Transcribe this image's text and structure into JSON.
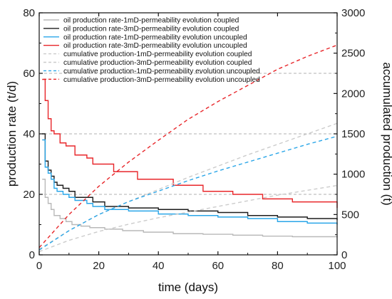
{
  "chart_data": {
    "type": "line",
    "title": "",
    "xlabel": "time (days)",
    "ylabel_left": "production rate (t/d)",
    "ylabel_right": "accumulated production (t)",
    "xlim": [
      0,
      100
    ],
    "ylim_left": [
      0,
      80
    ],
    "ylim_right": [
      0,
      3000
    ],
    "x_ticks": [
      0,
      20,
      40,
      60,
      80,
      100
    ],
    "y_left_ticks": [
      0,
      20,
      40,
      60,
      80
    ],
    "y_right_ticks": [
      0,
      500,
      1000,
      1500,
      2000,
      2500,
      3000
    ],
    "grid": "dashed horizontal reference lines at left-axis 20, 40, 60",
    "legend_position": "top-left",
    "series": [
      {
        "name": "oil production rate-1mD-permeability evolution coupled",
        "axis": "left",
        "style": "solid",
        "color": "#b9b9b9",
        "x": [
          1,
          2,
          3,
          4,
          5,
          7,
          9,
          11,
          14,
          17,
          22,
          28,
          35,
          45,
          55,
          65,
          75,
          85,
          100
        ],
        "y": [
          25,
          19,
          17,
          15,
          13,
          12,
          11,
          10,
          9.5,
          9,
          8.5,
          8,
          7.5,
          7,
          6.8,
          6.5,
          6.2,
          6,
          5.8
        ]
      },
      {
        "name": "oil production rate-3mD-permeability evolution coupled",
        "axis": "left",
        "style": "solid",
        "color": "#1c1c1c",
        "x": [
          1,
          2,
          3,
          4,
          5,
          6,
          8,
          10,
          12,
          16,
          18,
          22,
          30,
          40,
          50,
          60,
          70,
          80,
          90,
          100
        ],
        "y": [
          40,
          31,
          28,
          26,
          24,
          23,
          22,
          21,
          19,
          19,
          17.5,
          16,
          15.5,
          15,
          14.5,
          14,
          13,
          12.5,
          12,
          11.5
        ]
      },
      {
        "name": "oil production rate-1mD-permeability evolution uncoupled",
        "axis": "left",
        "style": "solid",
        "color": "#2aa6e8",
        "x": [
          1,
          2,
          3,
          4,
          5,
          6,
          8,
          10,
          12,
          16,
          18,
          22,
          30,
          40,
          50,
          60,
          70,
          80,
          90,
          100
        ],
        "y": [
          38,
          29,
          27,
          25,
          22,
          21,
          20,
          19,
          18,
          17,
          16,
          15,
          14.5,
          13.5,
          13,
          12.5,
          12,
          11,
          10.5,
          10
        ]
      },
      {
        "name": "oil production rate-3mD-permeability evolution uncoupled",
        "axis": "left",
        "style": "solid",
        "color": "#e8262a",
        "x": [
          1,
          2,
          3,
          4,
          5,
          7,
          9,
          12,
          16,
          18,
          22,
          25,
          33,
          45,
          55,
          65,
          75,
          85,
          100
        ],
        "y": [
          58,
          51,
          45,
          41,
          40,
          37,
          36,
          33,
          32,
          30,
          30,
          27.5,
          25,
          23,
          21,
          20,
          18.5,
          17.5,
          15.5
        ]
      },
      {
        "name": "cumulative production-1mD-permeability evolution coupled",
        "axis": "right",
        "style": "dashed",
        "color": "#cccccc",
        "x": [
          0,
          10,
          20,
          30,
          40,
          50,
          60,
          70,
          80,
          90,
          100
        ],
        "y": [
          40,
          180,
          290,
          380,
          460,
          530,
          600,
          670,
          740,
          800,
          860
        ]
      },
      {
        "name": "cumulative production-3mD-permeability evolution coupled",
        "axis": "right",
        "style": "dashed",
        "color": "#cccccc",
        "x": [
          0,
          10,
          20,
          30,
          40,
          50,
          60,
          70,
          80,
          90,
          100
        ],
        "y": [
          70,
          300,
          500,
          660,
          810,
          960,
          1100,
          1240,
          1370,
          1500,
          1630
        ]
      },
      {
        "name": "cumulative production-1mD-permeability evolution uncoupled",
        "axis": "right",
        "style": "dashed",
        "color": "#2aa6e8",
        "x": [
          0,
          10,
          20,
          30,
          40,
          50,
          60,
          70,
          80,
          90,
          100
        ],
        "y": [
          60,
          300,
          500,
          660,
          790,
          920,
          1040,
          1150,
          1260,
          1370,
          1470
        ]
      },
      {
        "name": "cumulative production-3mD-permeability evolution uncoupled",
        "axis": "right",
        "style": "dashed",
        "color": "#e8262a",
        "x": [
          0,
          10,
          20,
          30,
          40,
          50,
          60,
          70,
          80,
          90,
          100
        ],
        "y": [
          90,
          500,
          850,
          1150,
          1420,
          1680,
          1900,
          2100,
          2300,
          2460,
          2600
        ]
      }
    ]
  }
}
